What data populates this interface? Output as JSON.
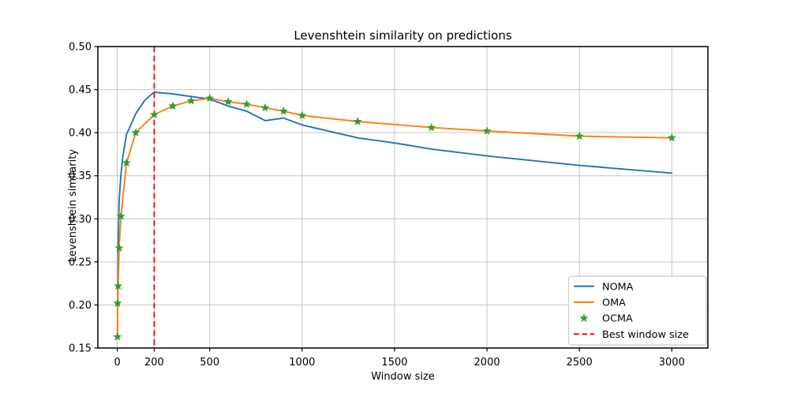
{
  "chart_data": {
    "type": "line",
    "title": "Levenshtein similarity on predictions",
    "xlabel": "Window size",
    "ylabel": "Levenshtein similarity",
    "xlim": [
      -105,
      3195
    ],
    "ylim": [
      0.15,
      0.5
    ],
    "xticks": [
      0,
      200,
      500,
      1000,
      1500,
      2000,
      2500,
      3000
    ],
    "xtick_labels": [
      "0",
      "200",
      "500",
      "1000",
      "1500",
      "2000",
      "2500",
      "3000"
    ],
    "yticks": [
      0.15,
      0.2,
      0.25,
      0.3,
      0.35,
      0.4,
      0.45,
      0.5
    ],
    "ytick_labels": [
      "0.15",
      "0.20",
      "0.25",
      "0.30",
      "0.35",
      "0.40",
      "0.45",
      "0.50"
    ],
    "grid": true,
    "grid_color": "#c6c6c6",
    "legend_position": "lower right",
    "series": [
      {
        "name": "NOMA",
        "type": "line",
        "color": "#1f77b4",
        "x": [
          1,
          2,
          5,
          10,
          20,
          30,
          50,
          100,
          150,
          200,
          300,
          400,
          500,
          600,
          700,
          800,
          900,
          1000,
          1300,
          1500,
          1700,
          2000,
          2500,
          3000
        ],
        "y": [
          0.163,
          0.202,
          0.27,
          0.32,
          0.352,
          0.372,
          0.398,
          0.422,
          0.438,
          0.447,
          0.445,
          0.442,
          0.439,
          0.431,
          0.425,
          0.414,
          0.417,
          0.409,
          0.394,
          0.388,
          0.381,
          0.373,
          0.362,
          0.353
        ]
      },
      {
        "name": "OMA",
        "type": "line",
        "color": "#ff7f0e",
        "x": [
          1,
          2,
          5,
          10,
          20,
          50,
          100,
          200,
          300,
          400,
          500,
          600,
          700,
          800,
          900,
          1000,
          1300,
          1700,
          2000,
          2500,
          3000
        ],
        "y": [
          0.163,
          0.202,
          0.222,
          0.266,
          0.303,
          0.365,
          0.4,
          0.421,
          0.431,
          0.437,
          0.44,
          0.436,
          0.433,
          0.429,
          0.425,
          0.42,
          0.413,
          0.406,
          0.402,
          0.396,
          0.394
        ]
      },
      {
        "name": "OCMA",
        "type": "scatter",
        "marker": "star",
        "color": "#2ca02c",
        "x": [
          1,
          2,
          5,
          10,
          20,
          50,
          100,
          200,
          300,
          400,
          500,
          600,
          700,
          800,
          900,
          1000,
          1300,
          1700,
          2000,
          2500,
          3000
        ],
        "y": [
          0.163,
          0.202,
          0.222,
          0.266,
          0.303,
          0.365,
          0.4,
          0.421,
          0.431,
          0.437,
          0.44,
          0.436,
          0.433,
          0.429,
          0.425,
          0.42,
          0.413,
          0.406,
          0.402,
          0.396,
          0.394
        ]
      },
      {
        "name": "Best window size",
        "type": "vline",
        "linestyle": "dashed",
        "color": "#ff0000",
        "x": 200
      }
    ]
  }
}
